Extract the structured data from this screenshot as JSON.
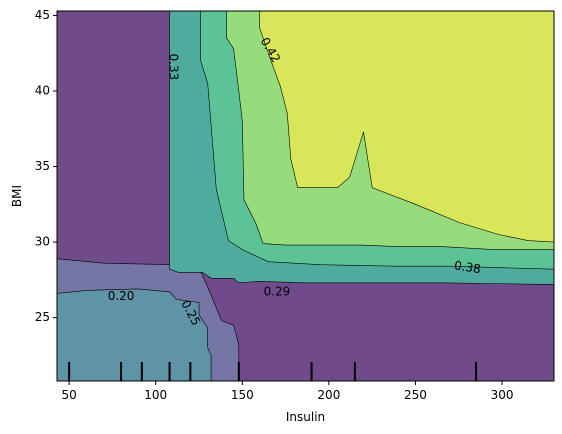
{
  "chart_data": {
    "type": "contour",
    "xlabel": "Insulin",
    "ylabel": "BMI",
    "xlim": [
      43,
      330
    ],
    "ylim": [
      20.8,
      45.3
    ],
    "xticks": [
      50,
      100,
      150,
      200,
      250,
      300
    ],
    "yticks": [
      25,
      30,
      35,
      40,
      45
    ],
    "levels": [
      {
        "name": "level-1",
        "color": "#6f4b8b"
      },
      {
        "name": "level-2",
        "color": "#7575a6"
      },
      {
        "name": "level-3",
        "color": "#5f93a6"
      },
      {
        "name": "level-4",
        "color": "#4fab9e"
      },
      {
        "name": "level-5",
        "color": "#5cc396"
      },
      {
        "name": "level-6",
        "color": "#96db7c"
      },
      {
        "name": "level-7",
        "color": "#d8e759"
      }
    ],
    "regions": [
      {
        "level": 1,
        "poly": [
          [
            43,
            20.8
          ],
          [
            43,
            45.3
          ],
          [
            330,
            45.3
          ],
          [
            330,
            20.8
          ]
        ]
      },
      {
        "level": 2,
        "poly": [
          [
            43,
            20.8
          ],
          [
            43,
            28.9
          ],
          [
            70,
            28.6
          ],
          [
            110,
            28.5
          ],
          [
            125,
            28.3
          ],
          [
            132,
            26.5
          ],
          [
            138,
            24.8
          ],
          [
            145,
            24.5
          ],
          [
            148,
            23.2
          ],
          [
            148,
            20.8
          ]
        ]
      },
      {
        "level": 3,
        "poly": [
          [
            43,
            20.8
          ],
          [
            43,
            26.6
          ],
          [
            60,
            26.8
          ],
          [
            90,
            26.9
          ],
          [
            108,
            26.7
          ],
          [
            112,
            26.2
          ],
          [
            125,
            26
          ],
          [
            125,
            25.2
          ],
          [
            130,
            24.3
          ],
          [
            130,
            23
          ],
          [
            132,
            22.5
          ],
          [
            132,
            20.8
          ]
        ]
      },
      {
        "level": 4,
        "poly": [
          [
            108,
            45.3
          ],
          [
            108,
            28.2
          ],
          [
            113,
            28
          ],
          [
            127,
            28
          ],
          [
            132,
            27.6
          ],
          [
            145,
            27.6
          ],
          [
            148,
            27.3
          ],
          [
            160,
            27.4
          ],
          [
            185,
            27.3
          ],
          [
            265,
            27.3
          ],
          [
            320,
            27.2
          ],
          [
            330,
            27.2
          ],
          [
            330,
            45.3
          ]
        ]
      },
      {
        "level": 5,
        "poly": [
          [
            126,
            45.3
          ],
          [
            126,
            42
          ],
          [
            130,
            40.5
          ],
          [
            135,
            33.5
          ],
          [
            142,
            30.1
          ],
          [
            150,
            29.5
          ],
          [
            165,
            28.7
          ],
          [
            195,
            28.5
          ],
          [
            240,
            28.4
          ],
          [
            270,
            28.4
          ],
          [
            300,
            28.3
          ],
          [
            330,
            28.2
          ],
          [
            330,
            45.3
          ]
        ]
      },
      {
        "level": 6,
        "poly": [
          [
            141,
            45.3
          ],
          [
            141,
            43.5
          ],
          [
            145,
            42.8
          ],
          [
            148,
            40
          ],
          [
            150,
            38
          ],
          [
            151,
            32.8
          ],
          [
            158,
            31.2
          ],
          [
            162,
            29.9
          ],
          [
            175,
            29.8
          ],
          [
            218,
            29.8
          ],
          [
            240,
            29.7
          ],
          [
            265,
            29.7
          ],
          [
            295,
            29.5
          ],
          [
            330,
            29.5
          ],
          [
            330,
            45.3
          ]
        ]
      },
      {
        "level": 7,
        "poly": [
          [
            160,
            45.3
          ],
          [
            160,
            44.2
          ],
          [
            165,
            42.5
          ],
          [
            172,
            40.3
          ],
          [
            176,
            38.5
          ],
          [
            178,
            35.5
          ],
          [
            182,
            33.6
          ],
          [
            192,
            33.6
          ],
          [
            205,
            33.6
          ],
          [
            212,
            34.3
          ],
          [
            220,
            37.3
          ],
          [
            225,
            33.6
          ],
          [
            250,
            32.5
          ],
          [
            275,
            31.3
          ],
          [
            298,
            30.5
          ],
          [
            315,
            30.1
          ],
          [
            330,
            30
          ],
          [
            330,
            45.3
          ]
        ]
      }
    ],
    "contour_labels": [
      {
        "text": "0.20",
        "x": 80,
        "y": 26.4,
        "angle": 0
      },
      {
        "text": "0.25",
        "x": 120,
        "y": 25.3,
        "angle": 62
      },
      {
        "text": "0.29",
        "x": 170,
        "y": 26.7,
        "angle": 0
      },
      {
        "text": "0.33",
        "x": 110,
        "y": 41.6,
        "angle": 90
      },
      {
        "text": "0.38",
        "x": 280,
        "y": 28.3,
        "angle": 9
      },
      {
        "text": "0.42",
        "x": 166,
        "y": 42.7,
        "angle": 60
      }
    ],
    "rug_x": [
      50,
      80,
      92,
      108,
      120,
      148,
      190,
      215,
      285
    ]
  }
}
